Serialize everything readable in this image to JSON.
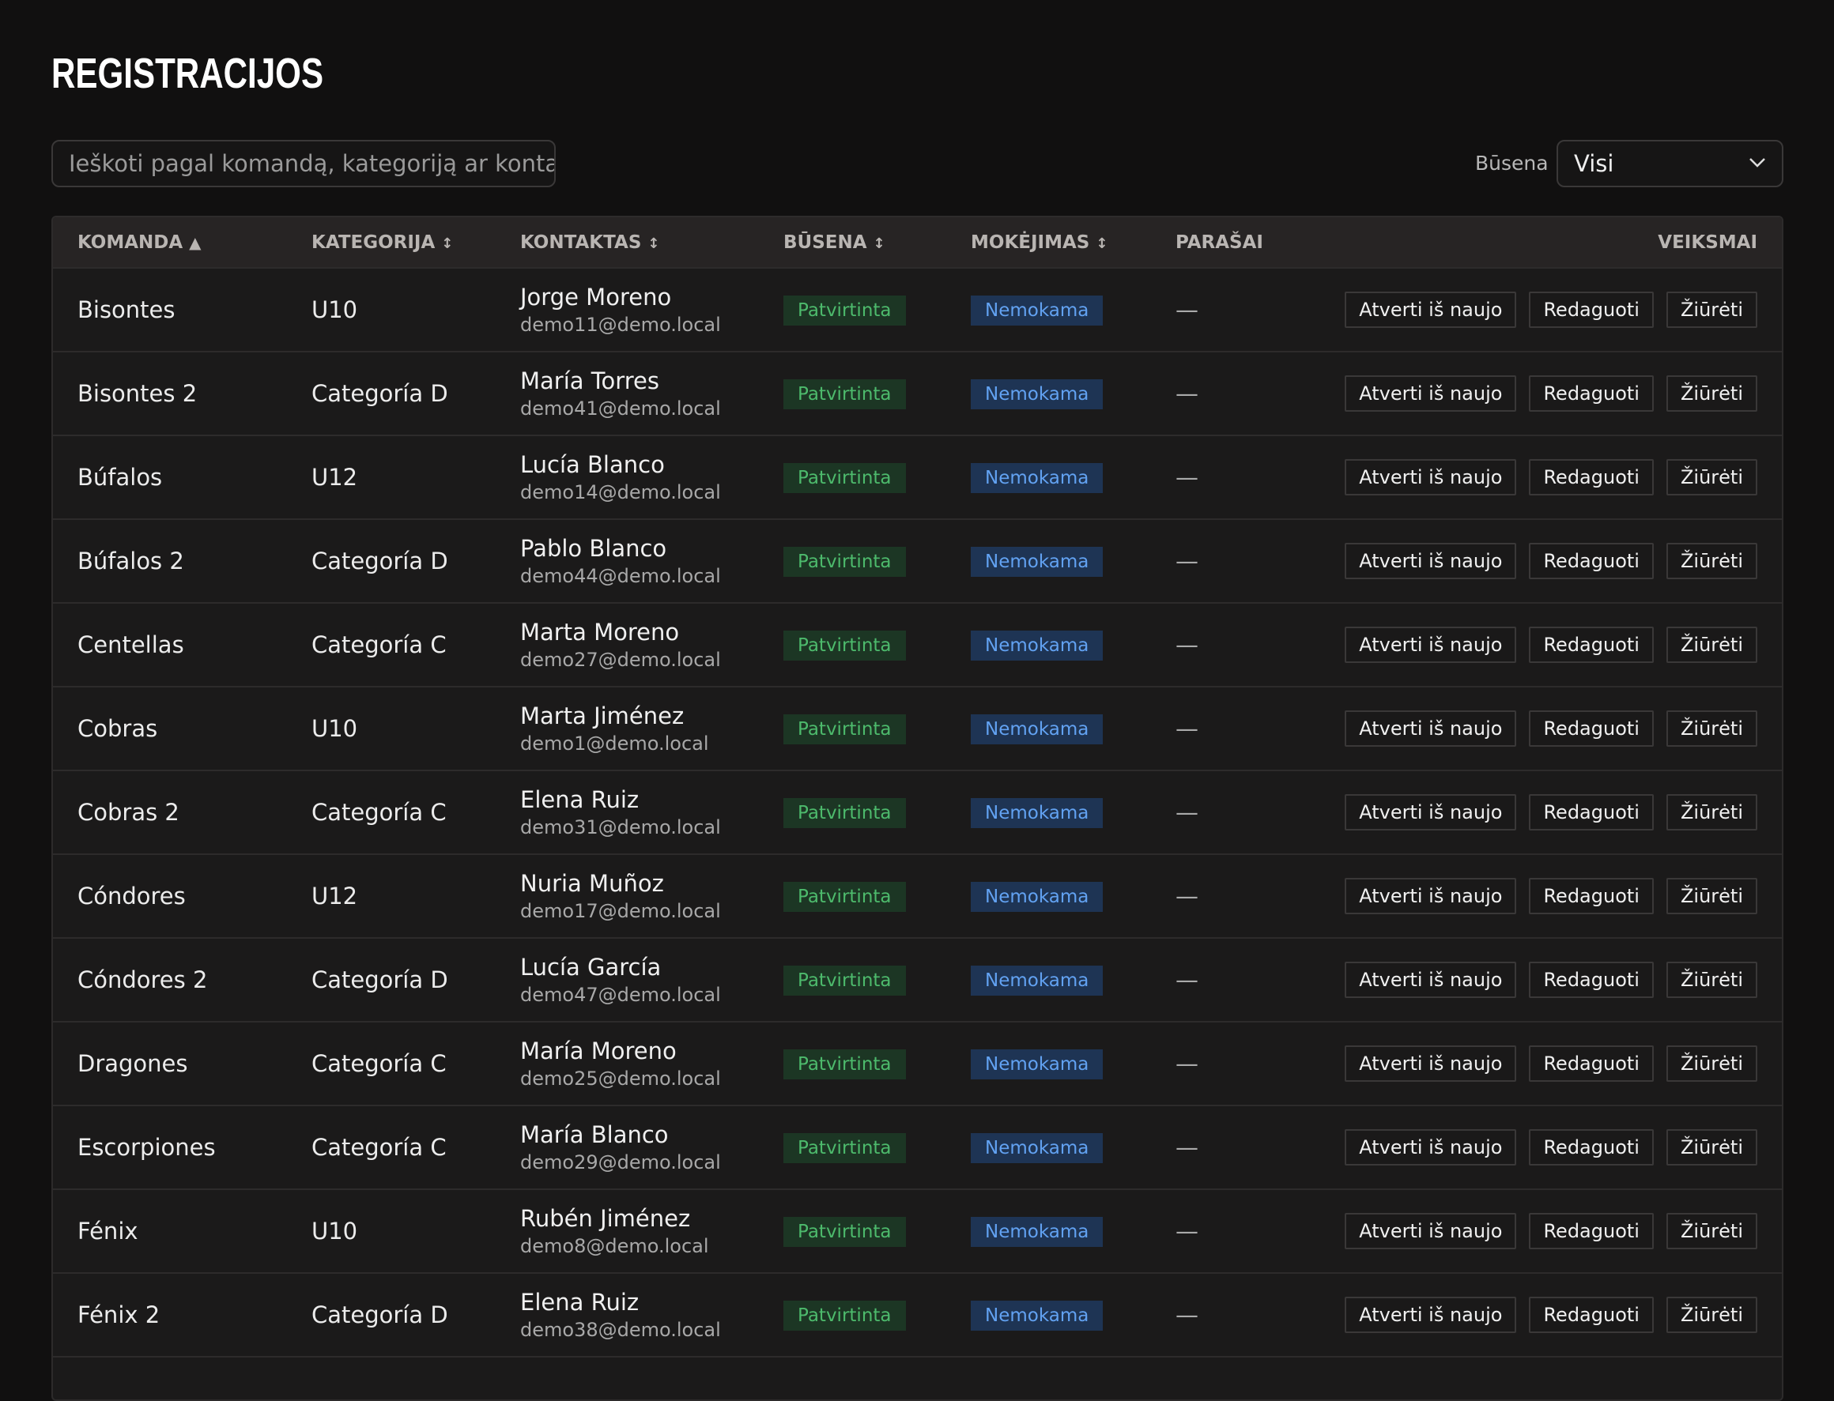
{
  "header": {
    "title": "REGISTRACIJOS",
    "search_placeholder": "Ieškoti pagal komandą, kategoriją ar kontaktą",
    "filter_label": "Būsena",
    "filter_value": "Visi"
  },
  "table": {
    "columns": [
      {
        "label": "KOMANDA",
        "sort": "▲"
      },
      {
        "label": "KATEGORIJA",
        "sort": "↕"
      },
      {
        "label": "KONTAKTAS",
        "sort": "↕"
      },
      {
        "label": "BŪSENA",
        "sort": "↕"
      },
      {
        "label": "MOKĖJIMAS",
        "sort": "↕"
      },
      {
        "label": "PARAŠAI"
      },
      {
        "label": "VEIKSMAI"
      }
    ],
    "rows": [
      {
        "team": "Bisontes",
        "category": "U10",
        "contact": "Jorge Moreno",
        "email": "demo11@demo.local",
        "status": "Patvirtinta",
        "payment": "Nemokama",
        "signatures": "—",
        "actions": [
          "Atverti iš naujo",
          "Redaguoti",
          "Žiūrėti"
        ]
      },
      {
        "team": "Bisontes 2",
        "category": "Categoría D",
        "contact": "María Torres",
        "email": "demo41@demo.local",
        "status": "Patvirtinta",
        "payment": "Nemokama",
        "signatures": "—",
        "actions": [
          "Atverti iš naujo",
          "Redaguoti",
          "Žiūrėti"
        ]
      },
      {
        "team": "Búfalos",
        "category": "U12",
        "contact": "Lucía Blanco",
        "email": "demo14@demo.local",
        "status": "Patvirtinta",
        "payment": "Nemokama",
        "signatures": "—",
        "actions": [
          "Atverti iš naujo",
          "Redaguoti",
          "Žiūrėti"
        ]
      },
      {
        "team": "Búfalos 2",
        "category": "Categoría D",
        "contact": "Pablo Blanco",
        "email": "demo44@demo.local",
        "status": "Patvirtinta",
        "payment": "Nemokama",
        "signatures": "—",
        "actions": [
          "Atverti iš naujo",
          "Redaguoti",
          "Žiūrėti"
        ]
      },
      {
        "team": "Centellas",
        "category": "Categoría C",
        "contact": "Marta Moreno",
        "email": "demo27@demo.local",
        "status": "Patvirtinta",
        "payment": "Nemokama",
        "signatures": "—",
        "actions": [
          "Atverti iš naujo",
          "Redaguoti",
          "Žiūrėti"
        ]
      },
      {
        "team": "Cobras",
        "category": "U10",
        "contact": "Marta Jiménez",
        "email": "demo1@demo.local",
        "status": "Patvirtinta",
        "payment": "Nemokama",
        "signatures": "—",
        "actions": [
          "Atverti iš naujo",
          "Redaguoti",
          "Žiūrėti"
        ]
      },
      {
        "team": "Cobras 2",
        "category": "Categoría C",
        "contact": "Elena Ruiz",
        "email": "demo31@demo.local",
        "status": "Patvirtinta",
        "payment": "Nemokama",
        "signatures": "—",
        "actions": [
          "Atverti iš naujo",
          "Redaguoti",
          "Žiūrėti"
        ]
      },
      {
        "team": "Cóndores",
        "category": "U12",
        "contact": "Nuria Muñoz",
        "email": "demo17@demo.local",
        "status": "Patvirtinta",
        "payment": "Nemokama",
        "signatures": "—",
        "actions": [
          "Atverti iš naujo",
          "Redaguoti",
          "Žiūrėti"
        ]
      },
      {
        "team": "Cóndores 2",
        "category": "Categoría D",
        "contact": "Lucía García",
        "email": "demo47@demo.local",
        "status": "Patvirtinta",
        "payment": "Nemokama",
        "signatures": "—",
        "actions": [
          "Atverti iš naujo",
          "Redaguoti",
          "Žiūrėti"
        ]
      },
      {
        "team": "Dragones",
        "category": "Categoría C",
        "contact": "María Moreno",
        "email": "demo25@demo.local",
        "status": "Patvirtinta",
        "payment": "Nemokama",
        "signatures": "—",
        "actions": [
          "Atverti iš naujo",
          "Redaguoti",
          "Žiūrėti"
        ]
      },
      {
        "team": "Escorpiones",
        "category": "Categoría C",
        "contact": "María Blanco",
        "email": "demo29@demo.local",
        "status": "Patvirtinta",
        "payment": "Nemokama",
        "signatures": "—",
        "actions": [
          "Atverti iš naujo",
          "Redaguoti",
          "Žiūrėti"
        ]
      },
      {
        "team": "Fénix",
        "category": "U10",
        "contact": "Rubén Jiménez",
        "email": "demo8@demo.local",
        "status": "Patvirtinta",
        "payment": "Nemokama",
        "signatures": "—",
        "actions": [
          "Atverti iš naujo",
          "Redaguoti",
          "Žiūrėti"
        ]
      },
      {
        "team": "Fénix 2",
        "category": "Categoría D",
        "contact": "Elena Ruiz",
        "email": "demo38@demo.local",
        "status": "Patvirtinta",
        "payment": "Nemokama",
        "signatures": "—",
        "actions": [
          "Atverti iš naujo",
          "Redaguoti",
          "Žiūrėti"
        ]
      }
    ]
  }
}
